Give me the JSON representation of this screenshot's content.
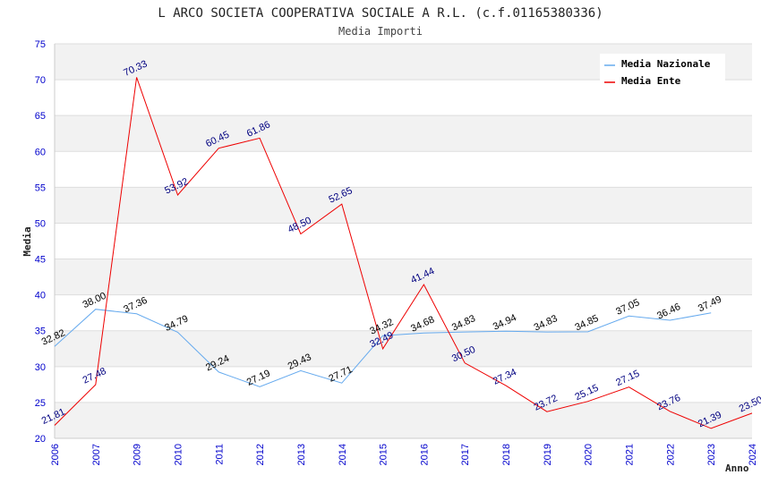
{
  "chart_data": {
    "type": "line",
    "title": "L ARCO SOCIETA COOPERATIVA SOCIALE A R.L. (c.f.01165380336)",
    "subtitle": "Media Importi",
    "xlabel": "Anno",
    "ylabel": "Media",
    "ylim": [
      20,
      75
    ],
    "yticks": [
      20,
      25,
      30,
      35,
      40,
      45,
      50,
      55,
      60,
      65,
      70,
      75
    ],
    "categories": [
      "2006",
      "2007",
      "2009",
      "2010",
      "2011",
      "2012",
      "2013",
      "2014",
      "2015",
      "2016",
      "2017",
      "2018",
      "2019",
      "2020",
      "2021",
      "2022",
      "2023",
      "2024"
    ],
    "grid": true,
    "legend_position": "top-right",
    "series": [
      {
        "name": "Media Nazionale",
        "color": "#66aaee",
        "label_color": "#000000",
        "values": [
          32.82,
          38.0,
          37.36,
          34.79,
          29.24,
          27.19,
          29.43,
          27.71,
          34.32,
          34.68,
          34.83,
          34.94,
          34.83,
          34.85,
          37.05,
          36.46,
          37.49,
          null
        ],
        "labels": [
          "32.82",
          "38.00",
          "37.36",
          "34.79",
          "29.24",
          "27.19",
          "29.43",
          "27.71",
          "34.32",
          "34.68",
          "34.83",
          "34.94",
          "34.83",
          "34.85",
          "37.05",
          "36.46",
          "37.49",
          ""
        ]
      },
      {
        "name": "Media Ente",
        "color": "#ee0000",
        "label_color": "#000080",
        "values": [
          21.81,
          27.48,
          70.33,
          53.92,
          60.45,
          61.86,
          48.5,
          52.65,
          32.49,
          41.44,
          30.5,
          27.34,
          23.72,
          25.15,
          27.15,
          23.76,
          21.39,
          23.5
        ],
        "labels": [
          "21.81",
          "27.48",
          "70.33",
          "53.92",
          "60.45",
          "61.86",
          "48.50",
          "52.65",
          "32.49",
          "41.44",
          "30.50",
          "27.34",
          "23.72",
          "25.15",
          "27.15",
          "23.76",
          "21.39",
          "23.50"
        ]
      }
    ]
  }
}
